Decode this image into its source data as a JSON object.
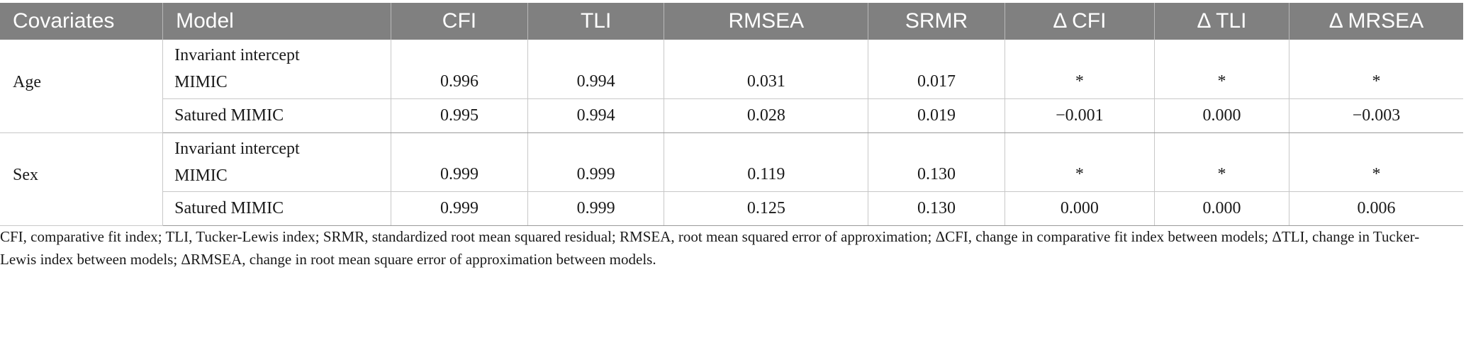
{
  "table": {
    "headers": [
      "Covariates",
      "Model",
      "CFI",
      "TLI",
      "RMSEA",
      "SRMR",
      "Δ CFI",
      "Δ TLI",
      "Δ MRSEA"
    ],
    "groups": [
      {
        "covariate": "Age",
        "rows": [
          {
            "model_line1": "Invariant intercept",
            "model_line2": "MIMIC",
            "cfi": "0.996",
            "tli": "0.994",
            "rmsea": "0.031",
            "srmr": "0.017",
            "d_cfi": "*",
            "d_tli": "*",
            "d_rmsea": "*"
          },
          {
            "model_line1": "Satured MIMIC",
            "model_line2": "",
            "cfi": "0.995",
            "tli": "0.994",
            "rmsea": "0.028",
            "srmr": "0.019",
            "d_cfi": "−0.001",
            "d_tli": "0.000",
            "d_rmsea": "−0.003"
          }
        ]
      },
      {
        "covariate": "Sex",
        "rows": [
          {
            "model_line1": "Invariant intercept",
            "model_line2": "MIMIC",
            "cfi": "0.999",
            "tli": "0.999",
            "rmsea": "0.119",
            "srmr": "0.130",
            "d_cfi": "*",
            "d_tli": "*",
            "d_rmsea": "*"
          },
          {
            "model_line1": "Satured MIMIC",
            "model_line2": "",
            "cfi": "0.999",
            "tli": "0.999",
            "rmsea": "0.125",
            "srmr": "0.130",
            "d_cfi": "0.000",
            "d_tli": "0.000",
            "d_rmsea": "0.006"
          }
        ]
      }
    ]
  },
  "footnote": "CFI, comparative fit index; TLI, Tucker-Lewis index; SRMR, standardized root mean squared residual; RMSEA, root mean squared error of approximation; ΔCFI, change in comparative fit index between models; ΔTLI, change in Tucker-Lewis index between models; ΔRMSEA, change in root mean square error of approximation between models."
}
